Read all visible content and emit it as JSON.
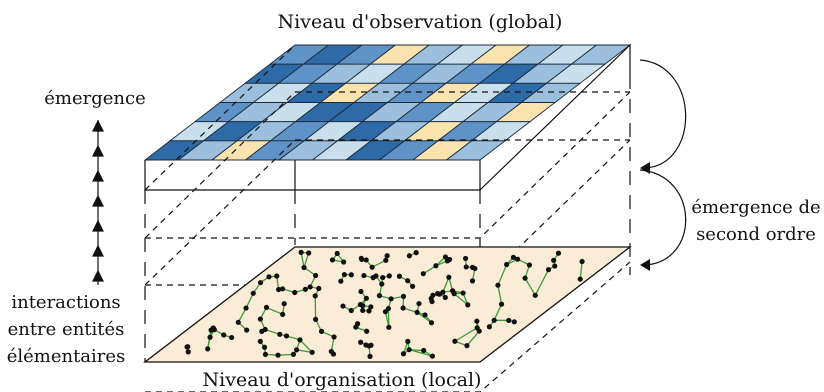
{
  "labels": {
    "top_level": "Niveau d'observation (global)",
    "bottom_level": "Niveau d'organisation (local)",
    "emergence": "émergence",
    "second_order": [
      "émergence de",
      "second ordre"
    ],
    "interactions": [
      "interactions",
      "entre entités",
      "élémentaires"
    ]
  },
  "colors": {
    "grid_palette": [
      "#2f6aa8",
      "#5f93c8",
      "#9bbfdd",
      "#c9e0ec",
      "#fbe3b0"
    ],
    "local_plane": "#fbecd7",
    "network_edges": "#3a9b3a",
    "network_nodes": "#111111"
  }
}
